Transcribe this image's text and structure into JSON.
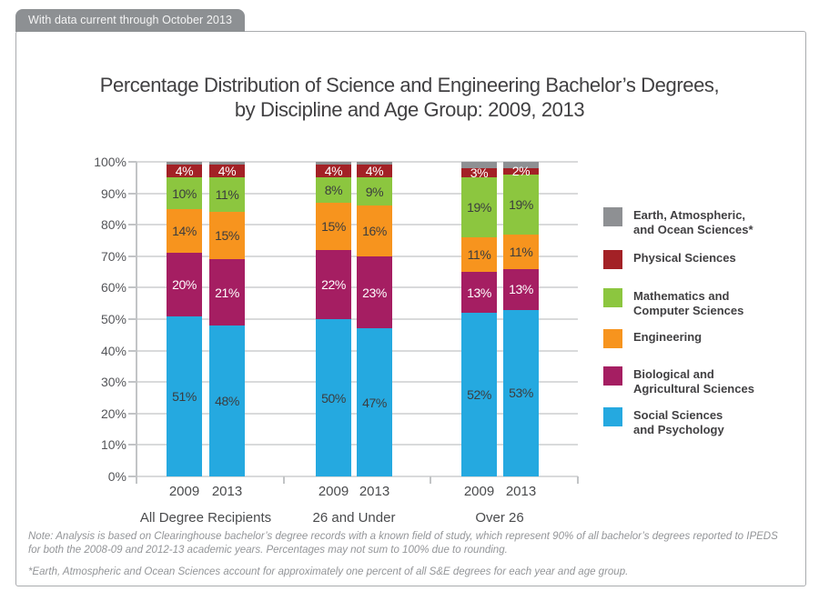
{
  "badge": {
    "label": "With data current through October 2013"
  },
  "title": {
    "line1": "Percentage Distribution of Science and Engineering Bachelor’s Degrees,",
    "line2": "by Discipline and Age Group: 2009, 2013"
  },
  "chart_data": {
    "type": "bar",
    "stacked": true,
    "unit": "%",
    "title": "Percentage Distribution of Science and Engineering Bachelor’s Degrees, by Discipline and Age Group: 2009, 2013",
    "group_labels": [
      "All Degree Recipients",
      "26 and Under",
      "Over 26"
    ],
    "bar_years": [
      "2009",
      "2013",
      "2009",
      "2013",
      "2009",
      "2013"
    ],
    "series": [
      {
        "name": "Social Sciences and Psychology",
        "color": "#25A9E0",
        "label_style": "dark",
        "show_labels": true,
        "values": [
          51,
          48,
          50,
          47,
          52,
          53
        ]
      },
      {
        "name": "Biological and Agricultural Sciences",
        "color": "#A51E62",
        "label_style": "white",
        "show_labels": true,
        "values": [
          20,
          21,
          22,
          23,
          13,
          13
        ]
      },
      {
        "name": "Engineering",
        "color": "#F7941E",
        "label_style": "dark",
        "show_labels": true,
        "values": [
          14,
          15,
          15,
          16,
          11,
          11
        ]
      },
      {
        "name": "Mathematics and Computer Sciences",
        "color": "#8CC63F",
        "label_style": "dark",
        "show_labels": true,
        "values": [
          10,
          11,
          8,
          9,
          19,
          19
        ]
      },
      {
        "name": "Physical Sciences",
        "color": "#A32126",
        "label_style": "white",
        "show_labels": true,
        "values": [
          4,
          4,
          4,
          4,
          3,
          2
        ]
      },
      {
        "name": "Earth, Atmospheric, and Ocean Sciences",
        "color": "#8E9093",
        "label_style": "none",
        "show_labels": false,
        "values": [
          1,
          1,
          1,
          1,
          2,
          2
        ]
      }
    ],
    "ylim": [
      0,
      100
    ],
    "y_ticks": [
      "0%",
      "10%",
      "20%",
      "30%",
      "40%",
      "50%",
      "60%",
      "70%",
      "80%",
      "90%",
      "100%"
    ],
    "grid": true,
    "legend_position": "right"
  },
  "legend": {
    "items": [
      {
        "lines": [
          "Earth, Atmospheric,",
          "and Ocean Sciences*"
        ],
        "color": "#8E9093"
      },
      {
        "lines": [
          "Physical Sciences"
        ],
        "color": "#A32126"
      },
      {
        "lines": [
          "Mathematics and",
          "Computer Sciences"
        ],
        "color": "#8CC63F"
      },
      {
        "lines": [
          "Engineering"
        ],
        "color": "#F7941E"
      },
      {
        "lines": [
          "Biological and",
          "Agricultural Sciences"
        ],
        "color": "#A51E62"
      },
      {
        "lines": [
          "Social Sciences",
          "and Psychology"
        ],
        "color": "#25A9E0"
      }
    ]
  },
  "notes": {
    "note1": "Note: Analysis is based on Clearinghouse bachelor’s degree records with a known field of study, which represent 90% of all bachelor’s degrees reported to IPEDS for both the 2008-09 and 2012-13 academic years. Percentages may not sum to 100% due to rounding.",
    "note2": "*Earth, Atmospheric and Ocean Sciences account for approximately one percent of all S&E degrees for each year and age group."
  },
  "colors": {
    "label_dark": "#3B3C3E",
    "label_white": "#FFFFFF",
    "badge_background": "#8D9093"
  }
}
